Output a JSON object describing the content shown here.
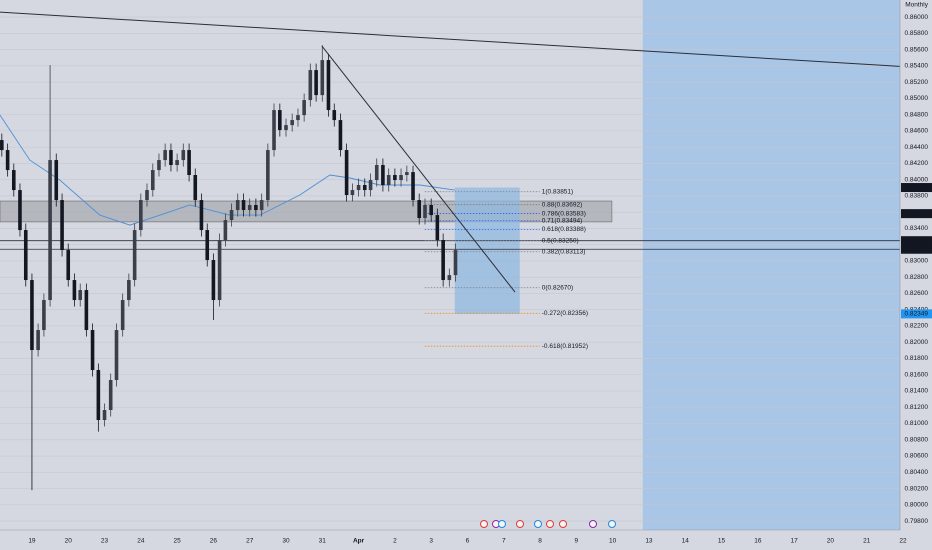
{
  "chart_data": {
    "type": "candlestick",
    "interval_label": "Monthly",
    "xlim": [
      -0.88,
      24.0
    ],
    "ylim": [
      0.7969,
      0.8621
    ],
    "grid": true,
    "up_color": "#3b3f4a",
    "down_color": "#131722",
    "xticks": [
      {
        "value": 0,
        "label": "19"
      },
      {
        "value": 1,
        "label": "20"
      },
      {
        "value": 2,
        "label": "23"
      },
      {
        "value": 3,
        "label": "24"
      },
      {
        "value": 4,
        "label": "25"
      },
      {
        "value": 5,
        "label": "26"
      },
      {
        "value": 6,
        "label": "27"
      },
      {
        "value": 7,
        "label": "30"
      },
      {
        "value": 8,
        "label": "31"
      },
      {
        "value": 9,
        "label": "Apr"
      },
      {
        "value": 10,
        "label": "2"
      },
      {
        "value": 11,
        "label": "3"
      },
      {
        "value": 12,
        "label": "6"
      },
      {
        "value": 13,
        "label": "7"
      },
      {
        "value": 14,
        "label": "8"
      },
      {
        "value": 15,
        "label": "9"
      },
      {
        "value": 16,
        "label": "10"
      },
      {
        "value": 17,
        "label": "13"
      },
      {
        "value": 18,
        "label": "14"
      },
      {
        "value": 19,
        "label": "15"
      },
      {
        "value": 20,
        "label": "16"
      },
      {
        "value": 21,
        "label": "17"
      },
      {
        "value": 22,
        "label": "20"
      },
      {
        "value": 23,
        "label": "21"
      },
      {
        "value": 24,
        "label": "22"
      }
    ],
    "yticks": [
      {
        "value": 0.798,
        "label": "0.79800"
      },
      {
        "value": 0.8,
        "label": "0.80000"
      },
      {
        "value": 0.802,
        "label": "0.80200"
      },
      {
        "value": 0.804,
        "label": "0.80400"
      },
      {
        "value": 0.806,
        "label": "0.80600"
      },
      {
        "value": 0.808,
        "label": "0.80800"
      },
      {
        "value": 0.81,
        "label": "0.81000"
      },
      {
        "value": 0.812,
        "label": "0.81200"
      },
      {
        "value": 0.814,
        "label": "0.81400"
      },
      {
        "value": 0.816,
        "label": "0.81600"
      },
      {
        "value": 0.818,
        "label": "0.81800"
      },
      {
        "value": 0.82,
        "label": "0.82000"
      },
      {
        "value": 0.822,
        "label": "0.82200"
      },
      {
        "value": 0.824,
        "label": "0.82400"
      },
      {
        "value": 0.826,
        "label": "0.82600"
      },
      {
        "value": 0.828,
        "label": "0.82800"
      },
      {
        "value": 0.83,
        "label": "0.83000"
      },
      {
        "value": 0.832,
        "label": "0.83200"
      },
      {
        "value": 0.834,
        "label": "0.83400"
      },
      {
        "value": 0.836,
        "label": "0.83600"
      },
      {
        "value": 0.838,
        "label": "0.83800"
      },
      {
        "value": 0.84,
        "label": "0.84000"
      },
      {
        "value": 0.842,
        "label": "0.84200"
      },
      {
        "value": 0.844,
        "label": "0.84400"
      },
      {
        "value": 0.846,
        "label": "0.84600"
      },
      {
        "value": 0.848,
        "label": "0.84800"
      },
      {
        "value": 0.85,
        "label": "0.85000"
      },
      {
        "value": 0.852,
        "label": "0.85200"
      },
      {
        "value": 0.854,
        "label": "0.85400"
      },
      {
        "value": 0.856,
        "label": "0.85600"
      },
      {
        "value": 0.858,
        "label": "0.85800"
      },
      {
        "value": 0.86,
        "label": "0.86000"
      }
    ],
    "x": [
      -0.83,
      -0.67,
      -0.5,
      -0.33,
      -0.17,
      0,
      0.17,
      0.33,
      0.5,
      0.67,
      0.83,
      1,
      1.17,
      1.33,
      1.5,
      1.67,
      1.83,
      2,
      2.17,
      2.33,
      2.5,
      2.67,
      2.83,
      3,
      3.17,
      3.33,
      3.5,
      3.67,
      3.83,
      4,
      4.17,
      4.33,
      4.5,
      4.67,
      4.83,
      5,
      5.17,
      5.33,
      5.5,
      5.67,
      5.83,
      6,
      6.17,
      6.33,
      6.5,
      6.67,
      6.83,
      7,
      7.17,
      7.33,
      7.5,
      7.67,
      7.83,
      8,
      8.17,
      8.33,
      8.5,
      8.67,
      8.83,
      9,
      9.17,
      9.33,
      9.5,
      9.67,
      9.83,
      10,
      10.17,
      10.33,
      10.5,
      10.67,
      10.83,
      11,
      11.17,
      11.33,
      11.5,
      11.67
    ],
    "open": [
      0.84487,
      0.84364,
      0.84118,
      0.83872,
      0.8338,
      0.82765,
      0.81904,
      0.8215,
      0.82519,
      0.84241,
      0.83749,
      0.83134,
      0.82765,
      0.82519,
      0.82642,
      0.8215,
      0.81658,
      0.81043,
      0.81166,
      0.81535,
      0.8215,
      0.82519,
      0.82765,
      0.8338,
      0.83749,
      0.83872,
      0.84118,
      0.84241,
      0.84364,
      0.8418,
      0.84241,
      0.84364,
      0.84057,
      0.83749,
      0.8338,
      0.83011,
      0.82519,
      0.83257,
      0.83503,
      0.83626,
      0.83749,
      0.83626,
      0.83688,
      0.83626,
      0.83749,
      0.84364,
      0.84856,
      0.8461,
      0.84671,
      0.84733,
      0.84794,
      0.84979,
      0.85348,
      0.8504,
      0.85471,
      0.84856,
      0.84733,
      0.84364,
      0.83811,
      0.83872,
      0.83934,
      0.83872,
      0.83995,
      0.8418,
      0.83934,
      0.84057,
      0.83995,
      0.84057,
      0.84093,
      0.83749,
      0.83528,
      0.83688,
      0.83564,
      0.83257,
      0.82765,
      0.82826
    ],
    "high": [
      0.84567,
      0.84444,
      0.84198,
      0.83952,
      0.8346,
      0.82845,
      0.8223,
      0.82599,
      0.85409,
      0.84321,
      0.83829,
      0.83214,
      0.82845,
      0.82722,
      0.82722,
      0.8223,
      0.81738,
      0.81246,
      0.81615,
      0.8223,
      0.82599,
      0.82845,
      0.8346,
      0.83829,
      0.83952,
      0.84198,
      0.84321,
      0.84444,
      0.84444,
      0.84321,
      0.84444,
      0.84444,
      0.84137,
      0.83829,
      0.8346,
      0.83091,
      0.83337,
      0.83583,
      0.83706,
      0.83829,
      0.83829,
      0.83768,
      0.83768,
      0.83829,
      0.84444,
      0.84936,
      0.84936,
      0.84751,
      0.84813,
      0.84874,
      0.85059,
      0.85428,
      0.85428,
      0.85655,
      0.85551,
      0.84936,
      0.84813,
      0.84444,
      0.83952,
      0.84014,
      0.84014,
      0.84075,
      0.8426,
      0.8426,
      0.84137,
      0.84137,
      0.84137,
      0.84173,
      0.84173,
      0.83829,
      0.83768,
      0.83768,
      0.83644,
      0.83337,
      0.82906,
      0.83214
    ],
    "low": [
      0.84284,
      0.84038,
      0.83792,
      0.833,
      0.82685,
      0.8018,
      0.81824,
      0.8207,
      0.82439,
      0.83669,
      0.83054,
      0.82685,
      0.82439,
      0.82439,
      0.8207,
      0.81578,
      0.809,
      0.80963,
      0.81086,
      0.81455,
      0.8207,
      0.82439,
      0.82685,
      0.833,
      0.83669,
      0.83792,
      0.84038,
      0.84161,
      0.841,
      0.841,
      0.84161,
      0.83977,
      0.83669,
      0.833,
      0.82931,
      0.82273,
      0.82439,
      0.83177,
      0.83423,
      0.83546,
      0.83546,
      0.83546,
      0.83546,
      0.83546,
      0.83669,
      0.84284,
      0.8453,
      0.8453,
      0.84591,
      0.84653,
      0.84714,
      0.84899,
      0.8496,
      0.8496,
      0.84776,
      0.84653,
      0.84284,
      0.83731,
      0.83731,
      0.83792,
      0.83792,
      0.83792,
      0.83915,
      0.83854,
      0.83854,
      0.83915,
      0.83915,
      0.83977,
      0.83669,
      0.83448,
      0.83448,
      0.83484,
      0.83177,
      0.82685,
      0.82685,
      0.82746
    ],
    "close": [
      0.84364,
      0.84118,
      0.83872,
      0.8338,
      0.82765,
      0.81904,
      0.8215,
      0.82519,
      0.84241,
      0.83749,
      0.83134,
      0.82765,
      0.82519,
      0.82642,
      0.8215,
      0.81658,
      0.81043,
      0.81166,
      0.81535,
      0.8215,
      0.82519,
      0.82765,
      0.8338,
      0.83749,
      0.83872,
      0.84118,
      0.84241,
      0.84364,
      0.8418,
      0.84241,
      0.84364,
      0.84057,
      0.83749,
      0.8338,
      0.83011,
      0.82519,
      0.83257,
      0.83503,
      0.83626,
      0.83749,
      0.83626,
      0.83688,
      0.83626,
      0.83749,
      0.84364,
      0.84856,
      0.8461,
      0.84671,
      0.84733,
      0.84794,
      0.84979,
      0.85348,
      0.8504,
      0.85471,
      0.84856,
      0.84733,
      0.84364,
      0.83811,
      0.83872,
      0.83934,
      0.83872,
      0.83995,
      0.8418,
      0.83934,
      0.84057,
      0.83995,
      0.84057,
      0.84093,
      0.83749,
      0.83528,
      0.83688,
      0.83564,
      0.83257,
      0.82765,
      0.82826,
      0.83134
    ],
    "moving_average": {
      "color": "#4a90d9",
      "x": [
        -0.88,
        -0.06,
        0.77,
        1.87,
        2.7,
        3.53,
        4.35,
        5.45,
        6.28,
        7.38,
        8.21,
        8.76,
        9.59,
        10.69,
        11.65
      ],
      "values": [
        0.84794,
        0.84241,
        0.83995,
        0.83564,
        0.83441,
        0.83564,
        0.83688,
        0.83564,
        0.83564,
        0.83811,
        0.84057,
        0.8402,
        0.83934,
        0.83934,
        0.83872
      ]
    },
    "trend_lines": [
      {
        "x": [
          -0.88,
          24.0
        ],
        "values": [
          0.86061,
          0.85391
        ]
      },
      {
        "x": [
          7.99,
          13.31
        ],
        "values": [
          0.85643,
          0.82617
        ]
      }
    ],
    "horizontal_lines": [
      0.83249,
      0.83144
    ],
    "zone": {
      "x": [
        -0.88,
        15.98
      ],
      "values": [
        0.83737,
        0.8348
      ]
    },
    "position_box": {
      "x": [
        11.65,
        13.44
      ],
      "values": [
        0.83903,
        0.82349
      ]
    },
    "highlight_x": [
      16.83,
      24.0
    ],
    "fib_levels": [
      {
        "value": 0.83851,
        "label": "1(0.83851)",
        "color": "#787b86"
      },
      {
        "value": 0.83692,
        "label": "0.88(0.83692)",
        "color": "#787b86"
      },
      {
        "value": 0.83583,
        "label": "0.786(0.83583)",
        "color": "#2962ff"
      },
      {
        "value": 0.83494,
        "label": "0.71(0.83494)",
        "color": "#2962ff"
      },
      {
        "value": 0.83388,
        "label": "0.618(0.83388)",
        "color": "#2962ff"
      },
      {
        "value": 0.8325,
        "label": "0.5(0.83250)",
        "color": "#787b86"
      },
      {
        "value": 0.83113,
        "label": "0.382(0.83113)",
        "color": "#787b86"
      },
      {
        "value": 0.8267,
        "label": "0(0.82670)",
        "color": "#787b86"
      },
      {
        "value": 0.82356,
        "label": "-0.272(0.82356)",
        "color": "#f57c00"
      },
      {
        "value": 0.81952,
        "label": "-0.618(0.81952)",
        "color": "#f57c00"
      }
    ],
    "price_labels": [
      {
        "value": 0.83903,
        "label": "0.83903",
        "color": "#131722"
      },
      {
        "value": 0.83582,
        "label": "0.83582",
        "color": "#131722"
      },
      {
        "value": 0.83249,
        "label": "0.83249",
        "color": "#131722"
      },
      {
        "value": 0.83144,
        "label": "0.83144",
        "color": "#131722"
      },
      {
        "value": 0.82349,
        "label": "0.82349",
        "color": "#2196f3"
      }
    ]
  }
}
